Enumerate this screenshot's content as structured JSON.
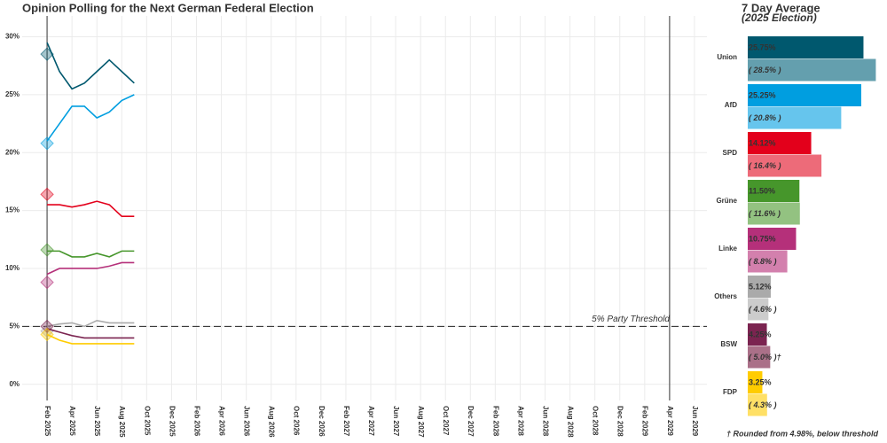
{
  "chart_data": [
    {
      "type": "line",
      "title": "Opinion Polling for the Next German Federal Election",
      "x": [
        "2025-02",
        "2025-03",
        "2025-04",
        "2025-05",
        "2025-06",
        "2025-07",
        "2025-08",
        "2025-09"
      ],
      "series": [
        {
          "name": "Union",
          "color": "#00586e",
          "values": [
            29.5,
            27,
            25.5,
            26,
            27,
            28,
            27,
            26
          ],
          "election_result": 28.5
        },
        {
          "name": "AfD",
          "color": "#009ee0",
          "values": [
            21,
            22.5,
            24,
            24,
            23,
            23.5,
            24.5,
            25
          ],
          "election_result": 20.8
        },
        {
          "name": "SPD",
          "color": "#e3001b",
          "values": [
            15.5,
            15.5,
            15.3,
            15.5,
            15.8,
            15.5,
            14.5,
            14.5
          ],
          "election_result": 16.4
        },
        {
          "name": "Grüne",
          "color": "#46962b",
          "values": [
            11.5,
            11.5,
            11,
            11,
            11.3,
            11,
            11.5,
            11.5
          ],
          "election_result": 11.6
        },
        {
          "name": "Linke",
          "color": "#b5307a",
          "values": [
            9.5,
            10,
            10,
            10,
            10,
            10.2,
            10.5,
            10.5
          ],
          "election_result": 8.8
        },
        {
          "name": "Others",
          "color": "#aaaaaa",
          "values": [
            5,
            5.2,
            5.3,
            5,
            5.5,
            5.3,
            5.3,
            5.3
          ],
          "election_result": 4.6
        },
        {
          "name": "BSW",
          "color": "#7b2450",
          "values": [
            4.8,
            4.5,
            4.2,
            4,
            4,
            4,
            4,
            4
          ],
          "election_result": 5.0
        },
        {
          "name": "FDP",
          "color": "#ffcc00",
          "values": [
            4.3,
            3.8,
            3.5,
            3.5,
            3.5,
            3.5,
            3.5,
            3.5
          ],
          "election_result": 4.3
        }
      ],
      "xlim": [
        "2024-12",
        "2029-07"
      ],
      "xticks": [
        {
          "value": "2025-02",
          "label": "Feb 2025"
        },
        {
          "value": "2025-04",
          "label": "Apr 2025"
        },
        {
          "value": "2025-06",
          "label": "Jun 2025"
        },
        {
          "value": "2025-08",
          "label": "Aug 2025"
        },
        {
          "value": "2025-10",
          "label": "Oct 2025"
        },
        {
          "value": "2025-12",
          "label": "Dec 2025"
        },
        {
          "value": "2026-02",
          "label": "Feb 2026"
        },
        {
          "value": "2026-04",
          "label": "Apr 2026"
        },
        {
          "value": "2026-06",
          "label": "Jun 2026"
        },
        {
          "value": "2026-08",
          "label": "Aug 2026"
        },
        {
          "value": "2026-10",
          "label": "Oct 2026"
        },
        {
          "value": "2026-12",
          "label": "Dec 2026"
        },
        {
          "value": "2027-02",
          "label": "Feb 2027"
        },
        {
          "value": "2027-04",
          "label": "Apr 2027"
        },
        {
          "value": "2027-06",
          "label": "Jun 2027"
        },
        {
          "value": "2027-08",
          "label": "Aug 2027"
        },
        {
          "value": "2027-10",
          "label": "Oct 2027"
        },
        {
          "value": "2027-12",
          "label": "Dec 2027"
        },
        {
          "value": "2028-02",
          "label": "Feb 2028"
        },
        {
          "value": "2028-04",
          "label": "Apr 2028"
        },
        {
          "value": "2028-06",
          "label": "Jun 2028"
        },
        {
          "value": "2028-08",
          "label": "Aug 2028"
        },
        {
          "value": "2028-10",
          "label": "Oct 2028"
        },
        {
          "value": "2028-12",
          "label": "Dec 2028"
        },
        {
          "value": "2029-02",
          "label": "Feb 2029"
        },
        {
          "value": "2029-04",
          "label": "Apr 2029"
        },
        {
          "value": "2029-06",
          "label": "Jun 2029"
        }
      ],
      "ylim": [
        -1.4,
        31.8
      ],
      "yticks": [
        {
          "value": 0,
          "label": "0%"
        },
        {
          "value": 5,
          "label": "5%"
        },
        {
          "value": 10,
          "label": "10%"
        },
        {
          "value": 15,
          "label": "15%"
        },
        {
          "value": 20,
          "label": "20%"
        },
        {
          "value": 25,
          "label": "25%"
        },
        {
          "value": 30,
          "label": "30%"
        }
      ],
      "grid": true,
      "election_lines": [
        "2025-02",
        "2029-04"
      ],
      "threshold": {
        "value": 5,
        "label": "5% Party Threshold"
      }
    },
    {
      "type": "bar",
      "orientation": "horizontal",
      "categories": [
        "Union",
        "AfD",
        "SPD",
        "Grüne",
        "Linke",
        "Others",
        "BSW",
        "FDP"
      ],
      "series": [
        {
          "name": "7 Day Average",
          "colors": [
            "#00586e",
            "#009ee0",
            "#e3001b",
            "#46962b",
            "#b5307a",
            "#aaaaaa",
            "#7b2450",
            "#ffcc00"
          ],
          "values": [
            25.75,
            25.25,
            14.12,
            11.5,
            10.75,
            5.12,
            4.25,
            3.25
          ],
          "value_labels": [
            "25.75%",
            "25.25%",
            "14.12%",
            "11.50%",
            "10.75%",
            "5.12%",
            "4.25%",
            "3.25%"
          ]
        },
        {
          "name": "(2025 Election)",
          "colors": [
            "#649fae",
            "#66c5ed",
            "#ed6b79",
            "#93c281",
            "#d380ad",
            "#cccccc",
            "#aa7088",
            "#ffe066"
          ],
          "values": [
            28.5,
            20.8,
            16.4,
            11.6,
            8.8,
            4.6,
            5.0,
            4.3
          ],
          "value_labels": [
            "( 28.5% )",
            "( 20.8% )",
            "( 16.4% )",
            "( 11.6% )",
            "( 8.8% )",
            "( 4.6% )",
            "( 5.0% )†",
            "( 4.3% )"
          ]
        }
      ],
      "xlim": [
        0,
        30
      ],
      "footnote": "† Rounded from 4.98%, below threshold"
    }
  ]
}
